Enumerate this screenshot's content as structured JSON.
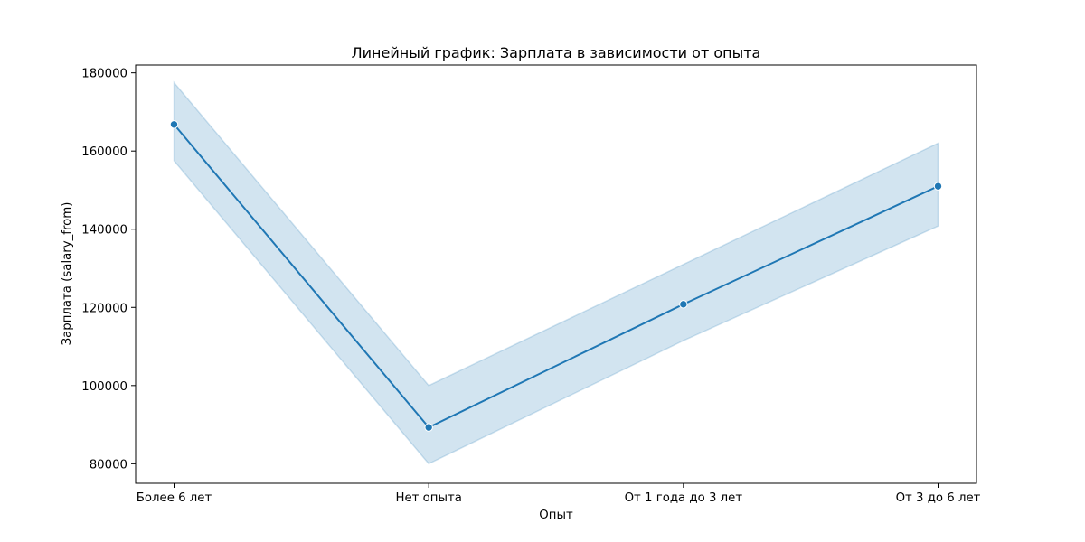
{
  "chart_data": {
    "type": "line",
    "title": "Линейный график: Зарплата в зависимости от опыта",
    "xlabel": "Опыт",
    "ylabel": "Зарплата (salary_from)",
    "categories": [
      "Более 6 лет",
      "Нет опыта",
      "От 1 года до 3 лет",
      "От 3 до 6 лет"
    ],
    "series": [
      {
        "values": [
          166800,
          89300,
          120800,
          151000
        ],
        "ci_lower": [
          157500,
          80000,
          111500,
          140800
        ],
        "ci_upper": [
          177500,
          100000,
          131000,
          162000
        ],
        "markers": true
      }
    ],
    "ylim": [
      75000,
      182000
    ],
    "yticks": [
      80000,
      100000,
      120000,
      140000,
      160000,
      180000
    ],
    "grid": false,
    "legend": "none",
    "colors": {
      "line": "#1f77b4",
      "band": "#1f77b4",
      "marker_edge": "#ffffff",
      "axes": "#000000"
    }
  }
}
